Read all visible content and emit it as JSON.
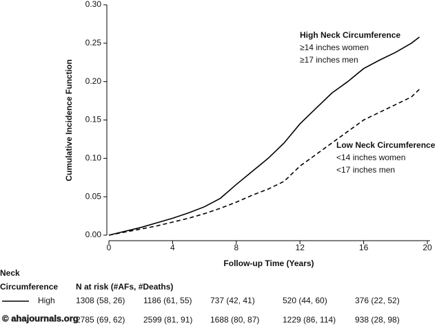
{
  "chart_data": {
    "type": "line",
    "xlabel": "Follow-up Time (Years)",
    "ylabel": "Cumulative Incidence Function",
    "x": [
      0,
      1,
      2,
      3,
      4,
      5,
      6,
      7,
      8,
      9,
      10,
      11,
      12,
      13,
      14,
      15,
      16,
      17,
      18,
      19,
      19.5
    ],
    "series": [
      {
        "color": "#000000",
        "dash": "solid",
        "values": [
          0,
          0.005,
          0.01,
          0.016,
          0.022,
          0.029,
          0.037,
          0.048,
          0.066,
          0.083,
          0.1,
          0.12,
          0.145,
          0.165,
          0.185,
          0.2,
          0.217,
          0.228,
          0.238,
          0.25,
          0.258
        ]
      },
      {
        "color": "#000000",
        "dash": "dashed",
        "values": [
          0,
          0.004,
          0.008,
          0.012,
          0.017,
          0.022,
          0.028,
          0.035,
          0.043,
          0.052,
          0.06,
          0.07,
          0.09,
          0.105,
          0.12,
          0.135,
          0.15,
          0.16,
          0.17,
          0.18,
          0.19
        ]
      }
    ],
    "xlim": [
      0,
      20
    ],
    "xticks": [
      0,
      4,
      8,
      12,
      16,
      20
    ],
    "ylim": [
      0,
      0.3
    ],
    "yticks": [
      {
        "value": 0,
        "label": "0.00"
      },
      {
        "value": 0.05,
        "label": "0.05"
      },
      {
        "value": 0.1,
        "label": "0.10"
      },
      {
        "value": 0.15,
        "label": "0.15"
      },
      {
        "value": 0.2,
        "label": "0.20"
      },
      {
        "value": 0.25,
        "label": "0.25"
      },
      {
        "value": 0.3,
        "label": "0.30"
      }
    ],
    "annotations": [
      {
        "lines": [
          "High Neck Circumference",
          "≥14 inches women",
          "≥17 inches men"
        ]
      },
      {
        "lines": [
          "Low Neck Circumference",
          "<14 inches women",
          "<17 inches men"
        ]
      }
    ]
  },
  "risk_table": {
    "stub": [
      "Neck",
      "Circumference"
    ],
    "title": "N at risk (#AFs, #Deaths)",
    "rows": [
      {
        "label": "High",
        "cells": [
          "1308 (58, 26)",
          "1186 (61, 55)",
          "737 (42, 41)",
          "520 (44, 60)",
          "376 (22, 52)"
        ]
      },
      {
        "cells": [
          "2785 (69, 62)",
          "2599 (81, 91)",
          "1688 (80, 87)",
          "1229 (86, 114)",
          "938 (28, 98)"
        ]
      }
    ]
  },
  "watermark": "© ahajournals.org"
}
